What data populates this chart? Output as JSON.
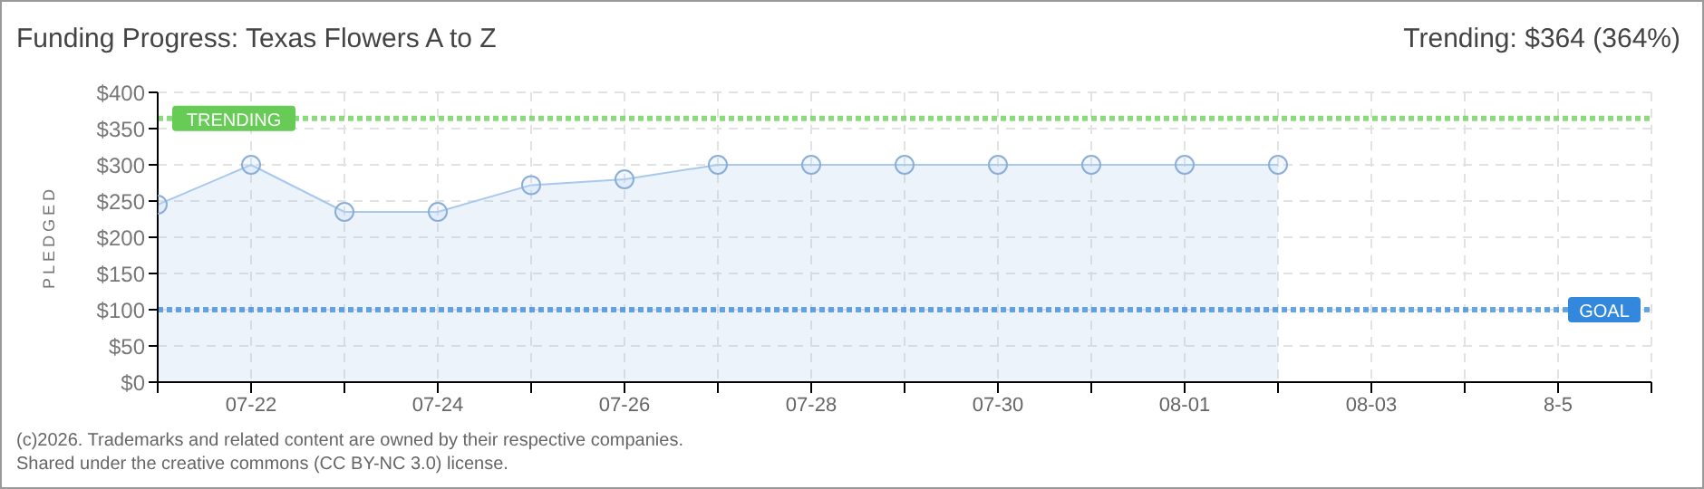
{
  "chart_data": {
    "type": "area",
    "title": "Funding Progress: Texas Flowers A to Z",
    "subtitle": "Trending: $364 (364%)",
    "ylabel": "PLEDGED",
    "categories": [
      null,
      "07-22",
      null,
      "07-24",
      null,
      "07-26",
      null,
      "07-28",
      null,
      "07-30",
      null,
      "08-01",
      null,
      "08-03",
      null,
      "8-5",
      null
    ],
    "series": [
      {
        "color": "#a8c8ee",
        "values": [
          245,
          300,
          235,
          235,
          272,
          280,
          300,
          300,
          300,
          300,
          300,
          300,
          300,
          null,
          null,
          null,
          null
        ]
      }
    ],
    "ylim": [
      0,
      400
    ],
    "yticks": [
      {
        "value": 0,
        "label": "$0"
      },
      {
        "value": 50,
        "label": "$50"
      },
      {
        "value": 100,
        "label": "$100"
      },
      {
        "value": 150,
        "label": "$150"
      },
      {
        "value": 200,
        "label": "$200"
      },
      {
        "value": 250,
        "label": "$250"
      },
      {
        "value": 300,
        "label": "$300"
      },
      {
        "value": 350,
        "label": "$350"
      },
      {
        "value": 400,
        "label": "$400"
      }
    ],
    "ref_lines": [
      {
        "axis": "y",
        "value": 364,
        "label": "TRENDING",
        "color": "#66cc55",
        "line_style": "dotted"
      },
      {
        "axis": "y",
        "value": 100,
        "label": "GOAL",
        "color": "#3388dd",
        "line_style": "dotted"
      }
    ],
    "grid": true,
    "marker": "circle",
    "annotations": [
      "(c)2026. Trademarks and related content are owned by their respective companies.",
      "Shared under the creative commons (CC BY-NC 3.0) license."
    ]
  }
}
